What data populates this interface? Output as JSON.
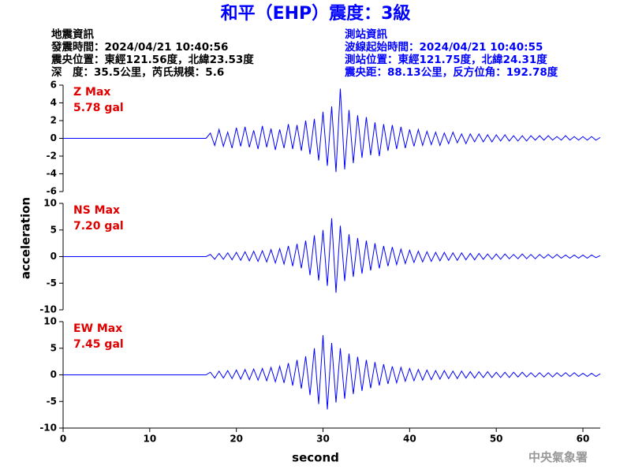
{
  "header": {
    "left": [
      "地震資訊",
      "發震時間：2024/04/21 10:40:56",
      "震央位置：東經121.56度，北緯23.53度",
      "深　度：35.5公里，芮氏規模：5.6"
    ],
    "right": [
      "測站資訊",
      "波線起始時間：2024/04/21 10:40:55",
      "測站位置：東經121.75度，北緯24.31度",
      "震央距：88.13公里，反方位角：192.78度"
    ]
  },
  "footer": "中央氣象署",
  "chart_data": {
    "type": "line",
    "title": "和平（EHP）震度：3級",
    "xlabel": "second",
    "ylabel": "acceleration",
    "color": "#0000ff",
    "xlim": [
      0,
      62
    ],
    "xticks": [
      0,
      10,
      20,
      30,
      40,
      50,
      60
    ],
    "x": [
      0,
      4,
      8,
      12,
      16,
      16.5,
      17,
      17.5,
      18,
      18.5,
      19,
      19.5,
      20,
      20.5,
      21,
      21.5,
      22,
      22.5,
      23,
      23.5,
      24,
      24.5,
      25,
      25.5,
      26,
      26.5,
      27,
      27.5,
      28,
      28.5,
      29,
      29.5,
      30,
      30.5,
      31,
      31.5,
      32,
      32.5,
      33,
      33.5,
      34,
      34.5,
      35,
      35.5,
      36,
      36.5,
      37,
      37.5,
      38,
      38.5,
      39,
      39.5,
      40,
      40.5,
      41,
      41.5,
      42,
      42.5,
      43,
      43.5,
      44,
      44.5,
      45,
      45.5,
      46,
      46.5,
      47,
      47.5,
      48,
      48.5,
      49,
      49.5,
      50,
      50.5,
      51,
      51.5,
      52,
      52.5,
      53,
      53.5,
      54,
      54.5,
      55,
      55.5,
      56,
      56.5,
      57,
      57.5,
      58,
      58.5,
      59,
      59.5,
      60,
      60.5,
      61,
      61.5,
      62
    ],
    "series": [
      {
        "name": "Z Max",
        "max_label": "5.78 gal",
        "ylim": [
          -6,
          6
        ],
        "yticks": [
          -6,
          -4,
          -2,
          0,
          2,
          4,
          6
        ],
        "values": [
          0,
          0,
          0,
          0,
          0,
          0,
          0.6,
          -0.8,
          1.0,
          -0.9,
          0.7,
          -1.1,
          1.2,
          -0.9,
          1.3,
          -1.0,
          0.9,
          -1.2,
          1.4,
          -1.0,
          1.1,
          -1.3,
          1.0,
          -1.1,
          1.6,
          -1.2,
          1.5,
          -1.4,
          2.0,
          -1.8,
          2.2,
          -2.5,
          3.0,
          -3.1,
          3.6,
          -3.8,
          5.6,
          -3.5,
          3.2,
          -2.8,
          2.6,
          -2.2,
          2.4,
          -1.9,
          1.8,
          -2.0,
          1.6,
          -1.4,
          1.5,
          -1.2,
          1.3,
          -1.1,
          1.0,
          -0.9,
          1.0,
          -0.8,
          0.8,
          -0.7,
          0.7,
          -0.8,
          0.6,
          -0.6,
          0.7,
          -0.5,
          0.5,
          -0.6,
          0.5,
          -0.4,
          0.5,
          -0.4,
          0.4,
          -0.4,
          0.4,
          -0.3,
          0.4,
          -0.3,
          0.3,
          -0.3,
          0.3,
          -0.3,
          0.3,
          -0.2,
          0.3,
          -0.2,
          0.3,
          -0.2,
          0.2,
          -0.2,
          0.3,
          -0.2,
          0.2,
          -0.2,
          0.2,
          -0.2,
          0.2,
          -0.2,
          0.1
        ]
      },
      {
        "name": "NS Max",
        "max_label": "7.20 gal",
        "ylim": [
          -10,
          10
        ],
        "yticks": [
          -10,
          -5,
          0,
          5,
          10
        ],
        "values": [
          0,
          0,
          0,
          0,
          0,
          0,
          0.4,
          -0.5,
          0.6,
          -0.5,
          0.7,
          -0.6,
          0.8,
          -0.7,
          0.9,
          -0.8,
          1.0,
          -0.9,
          1.1,
          -1.0,
          1.3,
          -1.2,
          1.5,
          -1.4,
          2.0,
          -1.8,
          2.4,
          -2.2,
          3.0,
          -3.5,
          4.0,
          -4.5,
          5.0,
          -5.5,
          7.2,
          -6.8,
          5.8,
          -4.6,
          4.2,
          -3.8,
          3.5,
          -3.2,
          3.0,
          -2.6,
          2.5,
          -2.2,
          2.0,
          -1.8,
          1.8,
          -1.5,
          1.4,
          -1.3,
          1.2,
          -1.1,
          1.0,
          -1.0,
          0.9,
          -0.9,
          0.8,
          -0.8,
          0.8,
          -0.7,
          0.7,
          -0.7,
          0.7,
          -0.6,
          0.6,
          -0.6,
          0.6,
          -0.5,
          0.5,
          -0.5,
          0.5,
          -0.5,
          0.5,
          -0.4,
          0.4,
          -0.4,
          0.5,
          -0.4,
          0.4,
          -0.4,
          0.4,
          -0.3,
          0.4,
          -0.3,
          0.4,
          -0.3,
          0.3,
          -0.3,
          0.3,
          -0.3,
          0.3,
          -0.3,
          0.3,
          -0.2,
          0.2
        ]
      },
      {
        "name": "EW Max",
        "max_label": "7.45 gal",
        "ylim": [
          -10,
          10
        ],
        "yticks": [
          -10,
          -5,
          0,
          5,
          10
        ],
        "values": [
          0,
          0,
          0,
          0,
          0,
          0,
          0.5,
          -0.6,
          0.7,
          -0.6,
          0.8,
          -0.7,
          0.9,
          -0.8,
          1.0,
          -0.9,
          1.1,
          -1.0,
          1.2,
          -1.1,
          1.4,
          -1.3,
          1.6,
          -1.5,
          2.2,
          -2.0,
          2.8,
          -2.6,
          3.5,
          -3.8,
          5.0,
          -5.5,
          7.45,
          -6.5,
          6.0,
          -5.2,
          5.0,
          -4.5,
          4.0,
          -3.6,
          3.4,
          -3.0,
          2.8,
          -2.5,
          2.4,
          -2.0,
          2.0,
          -1.7,
          1.6,
          -1.5,
          1.4,
          -1.2,
          1.2,
          -1.1,
          1.0,
          -1.0,
          0.9,
          -0.9,
          0.8,
          -0.8,
          0.8,
          -0.7,
          0.7,
          -0.7,
          0.7,
          -0.6,
          0.6,
          -0.6,
          0.6,
          -0.5,
          0.6,
          -0.5,
          0.5,
          -0.5,
          0.5,
          -0.5,
          0.5,
          -0.4,
          0.5,
          -0.4,
          0.4,
          -0.4,
          0.4,
          -0.4,
          0.4,
          -0.4,
          0.4,
          -0.3,
          0.4,
          -0.3,
          0.4,
          -0.3,
          0.3,
          -0.3,
          0.3,
          -0.3,
          0.2
        ]
      }
    ]
  }
}
